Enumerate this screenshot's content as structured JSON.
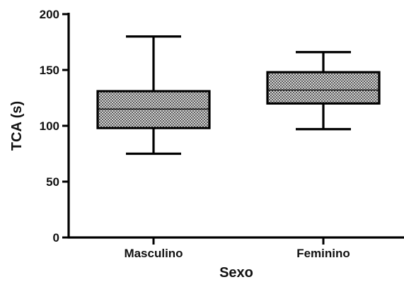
{
  "chart_data": {
    "type": "boxplot",
    "xlabel": "Sexo",
    "ylabel": "TCA (s)",
    "ylim": [
      0,
      200
    ],
    "yticks": [
      0,
      50,
      100,
      150,
      200
    ],
    "categories": [
      "Masculino",
      "Feminino"
    ],
    "boxes": [
      {
        "category": "Masculino",
        "min": 75,
        "q1": 98,
        "median": 115,
        "q3": 131,
        "max": 180
      },
      {
        "category": "Feminino",
        "min": 97,
        "q1": 120,
        "median": 132,
        "q3": 148,
        "max": 166
      }
    ],
    "grid": false,
    "legend": "none",
    "colors": {
      "box_fill": "#9a9a9a",
      "stroke": "#000000"
    }
  }
}
